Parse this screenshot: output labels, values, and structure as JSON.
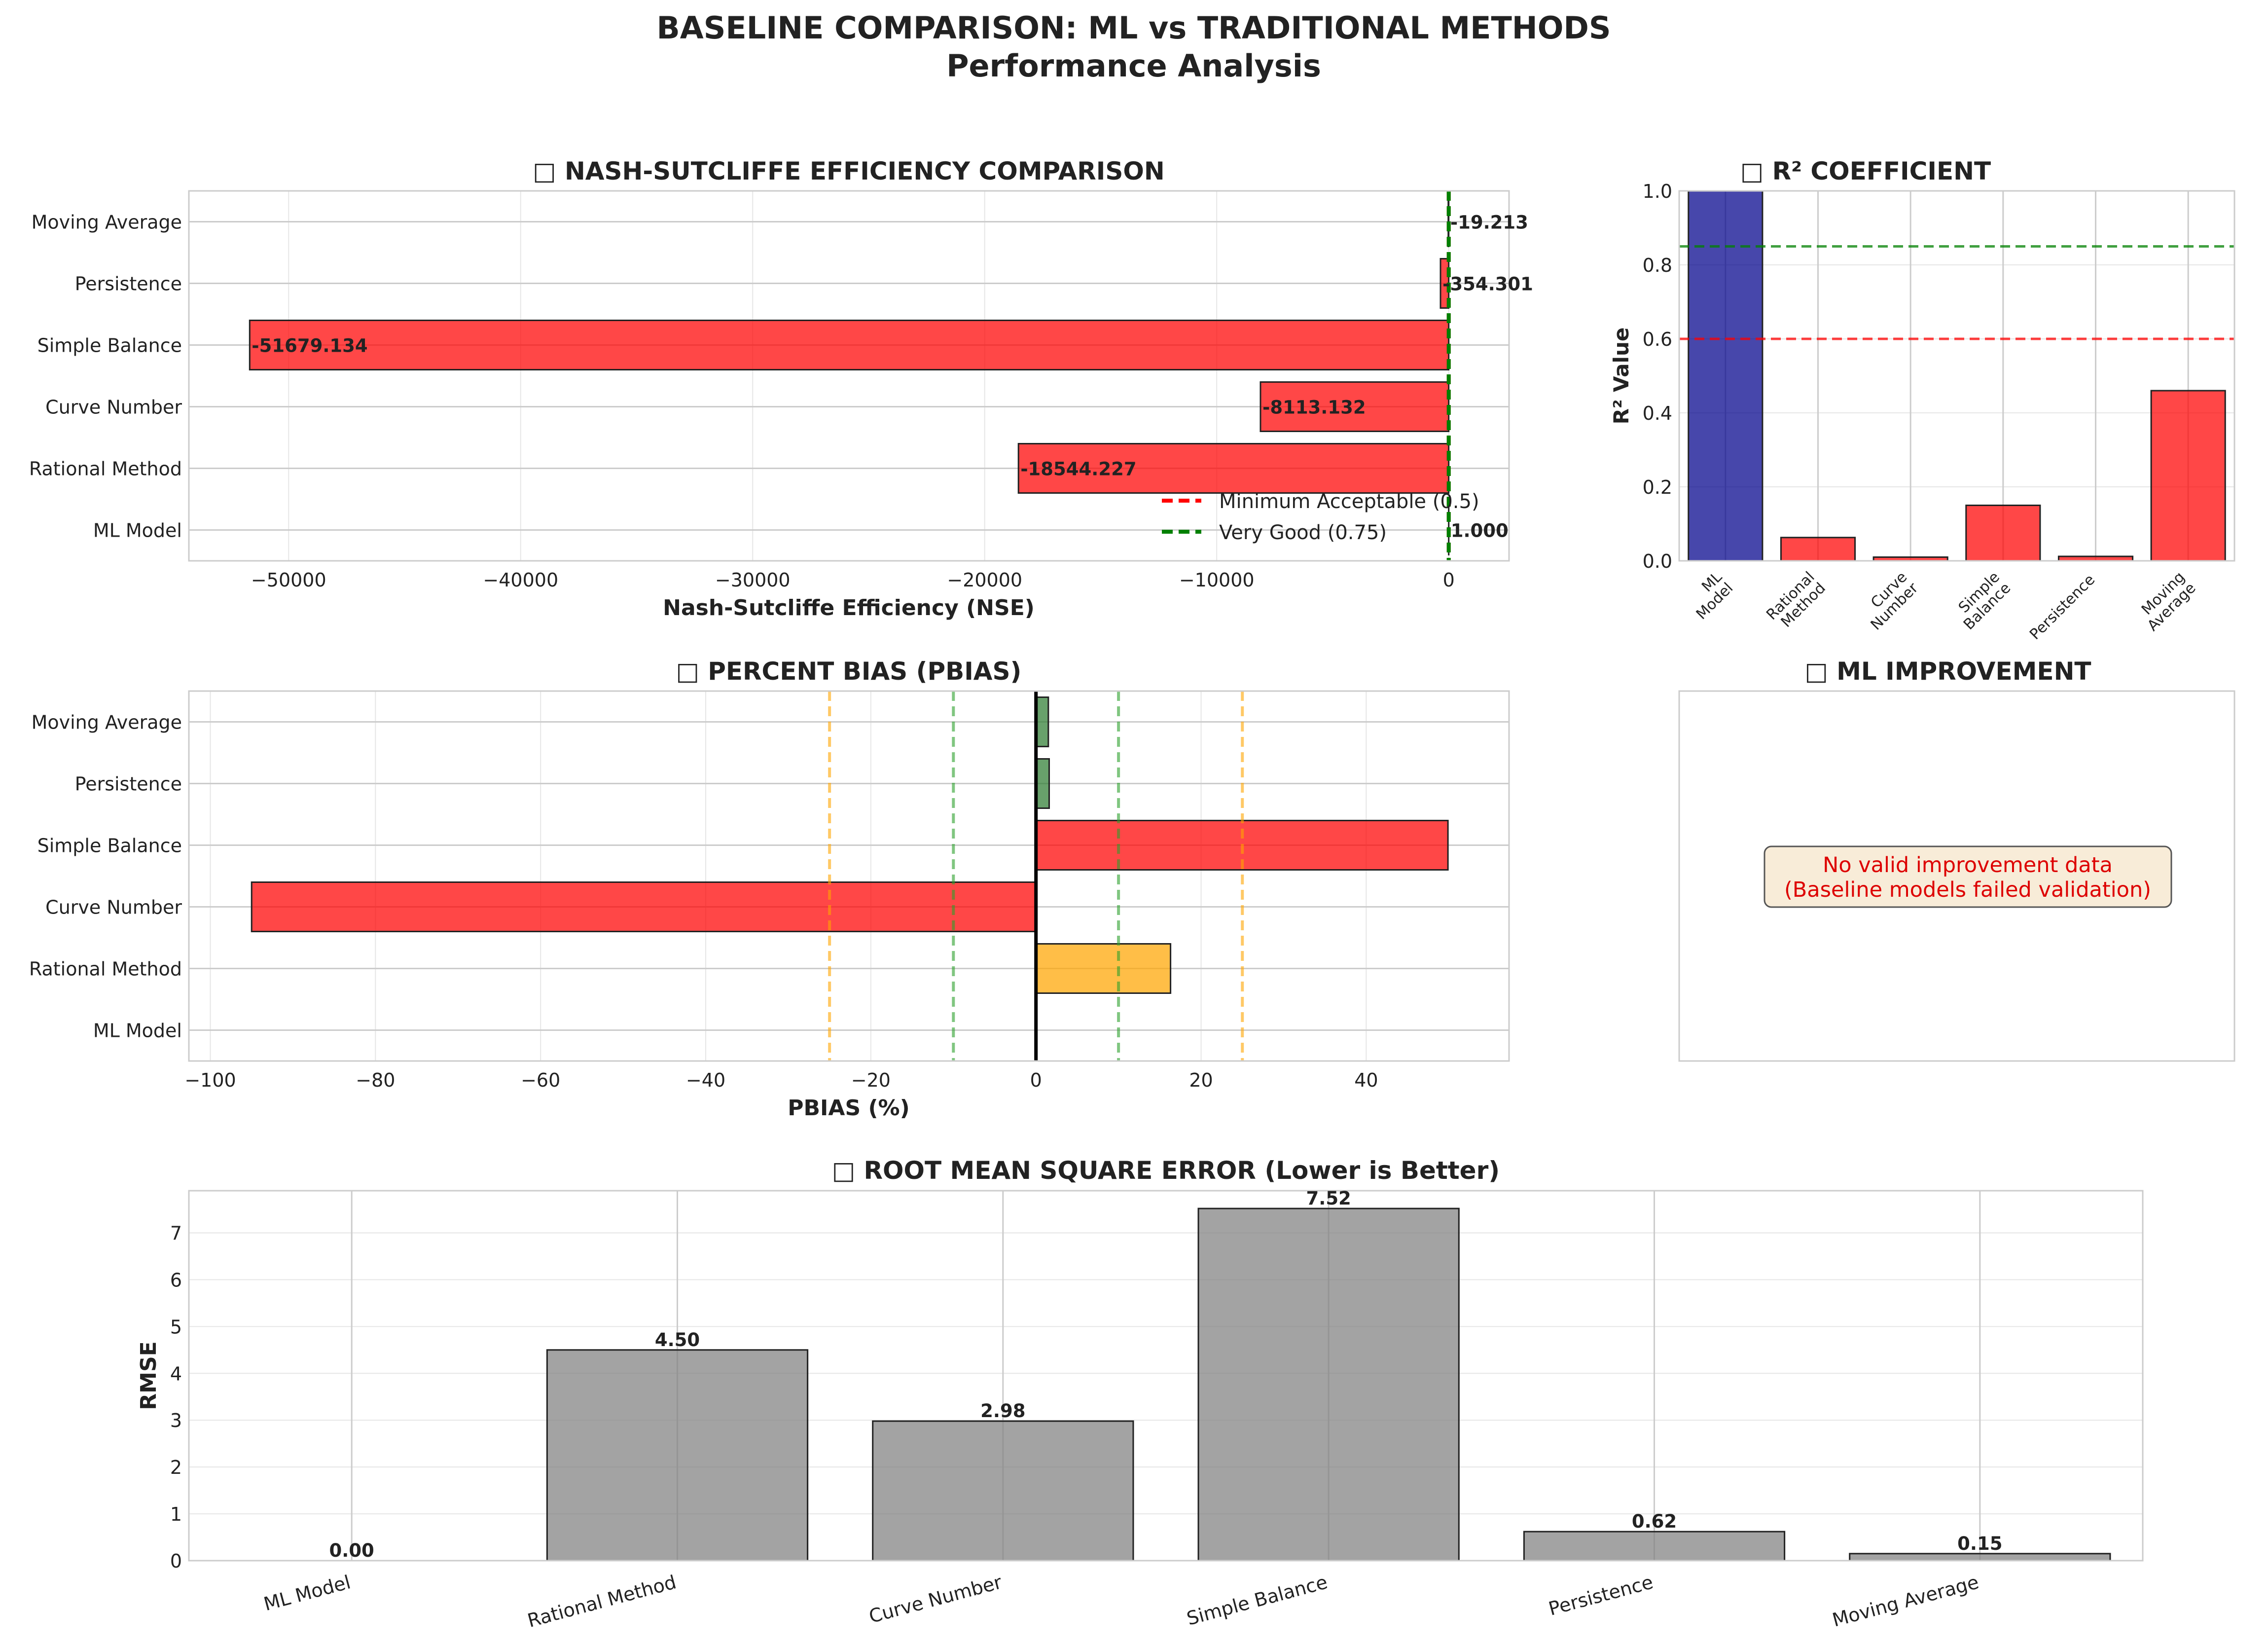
{
  "figure": {
    "title_line1": "BASELINE COMPARISON: ML vs TRADITIONAL METHODS",
    "title_line2": "Performance Analysis"
  },
  "colors": {
    "bad": "#ff0000",
    "good": "#2e7d32",
    "fair": "#ffa500",
    "ml": "#00008b",
    "rmse": "#808080",
    "ref_red": "#ff0000",
    "ref_green": "#008000",
    "ref_orange": "#ffa500",
    "ref_green_light": "#2ca02c"
  },
  "chart_data": [
    {
      "id": "nse",
      "type": "bar",
      "orientation": "horizontal",
      "title": "□ NASH-SUTCLIFFE EFFICIENCY COMPARISON",
      "xlabel": "Nash-Sutcliffe Efficiency (NSE)",
      "categories": [
        "ML Model",
        "Rational Method",
        "Curve Number",
        "Simple Balance",
        "Persistence",
        "Moving Average"
      ],
      "values": [
        1.0,
        -18544.227,
        -8113.132,
        -51679.134,
        -354.301,
        -19.213
      ],
      "value_labels": [
        "1.000",
        "-18544.227",
        "-8113.132",
        "-51679.134",
        "-354.301",
        "-19.213"
      ],
      "xlim": [
        -54300,
        2600
      ],
      "xticks": [
        -50000,
        -40000,
        -30000,
        -20000,
        -10000,
        0
      ],
      "xtick_labels": [
        "−50000",
        "−40000",
        "−30000",
        "−20000",
        "−10000",
        "0"
      ],
      "reference_lines": [
        {
          "value": 0.5,
          "label": "Minimum Acceptable (0.5)",
          "color": "#ff0000",
          "style": "dashed"
        },
        {
          "value": 0.75,
          "label": "Very Good (0.75)",
          "color": "#008000",
          "style": "dashed"
        }
      ],
      "legend": "lower-right",
      "grid": true
    },
    {
      "id": "r2",
      "type": "bar",
      "title": "□ R² COEFFICIENT",
      "ylabel": "R² Value",
      "categories": [
        "ML\nModel",
        "Rational\nMethod",
        "Curve\nNumber",
        "Simple\nBalance",
        "Persistence",
        "Moving\nAverage"
      ],
      "values": [
        1.0,
        0.063,
        0.01,
        0.15,
        0.012,
        0.46
      ],
      "ylim": [
        0,
        1.0
      ],
      "yticks": [
        0.0,
        0.2,
        0.4,
        0.6,
        0.8,
        1.0
      ],
      "ytick_labels": [
        "0.0",
        "0.2",
        "0.4",
        "0.6",
        "0.8",
        "1.0"
      ],
      "reference_lines": [
        {
          "value": 0.6,
          "color": "#ff0000",
          "style": "dashed"
        },
        {
          "value": 0.85,
          "color": "#008000",
          "style": "dashed"
        }
      ],
      "grid": true
    },
    {
      "id": "pbias",
      "type": "bar",
      "orientation": "horizontal",
      "title": "□ PERCENT BIAS (PBIAS)",
      "xlabel": "PBIAS (%)",
      "categories": [
        "ML Model",
        "Rational Method",
        "Curve Number",
        "Simple Balance",
        "Persistence",
        "Moving Average"
      ],
      "values": [
        0.0,
        16.3,
        -95.0,
        49.9,
        1.6,
        1.5
      ],
      "xlim": [
        -102.6,
        57.3
      ],
      "xticks": [
        -100,
        -80,
        -60,
        -40,
        -20,
        0,
        20,
        40
      ],
      "xtick_labels": [
        "−100",
        "−80",
        "−60",
        "−40",
        "−20",
        "0",
        "20",
        "40"
      ],
      "reference_lines": [
        {
          "value": -25,
          "color": "#ffa500",
          "style": "dashed"
        },
        {
          "value": 25,
          "color": "#ffa500",
          "style": "dashed"
        },
        {
          "value": -10,
          "color": "#2ca02c",
          "style": "dashed"
        },
        {
          "value": 10,
          "color": "#2ca02c",
          "style": "dashed"
        },
        {
          "value": 0,
          "color": "#000000",
          "style": "solid"
        }
      ],
      "grid": true
    },
    {
      "id": "improvement",
      "type": "table",
      "title": "□ ML IMPROVEMENT",
      "message_line1": "No valid improvement data",
      "message_line2": "(Baseline models failed validation)"
    },
    {
      "id": "rmse",
      "type": "bar",
      "title": "□ ROOT MEAN SQUARE ERROR (Lower is Better)",
      "ylabel": "RMSE",
      "categories": [
        "ML Model",
        "Rational Method",
        "Curve Number",
        "Simple Balance",
        "Persistence",
        "Moving Average"
      ],
      "values": [
        0.0,
        4.5,
        2.98,
        7.52,
        0.62,
        0.15
      ],
      "value_labels": [
        "0.00",
        "4.50",
        "2.98",
        "7.52",
        "0.62",
        "0.15"
      ],
      "ylim": [
        0,
        7.9
      ],
      "yticks": [
        0,
        1,
        2,
        3,
        4,
        5,
        6,
        7
      ],
      "ytick_labels": [
        "0",
        "1",
        "2",
        "3",
        "4",
        "5",
        "6",
        "7"
      ],
      "grid": true
    }
  ]
}
